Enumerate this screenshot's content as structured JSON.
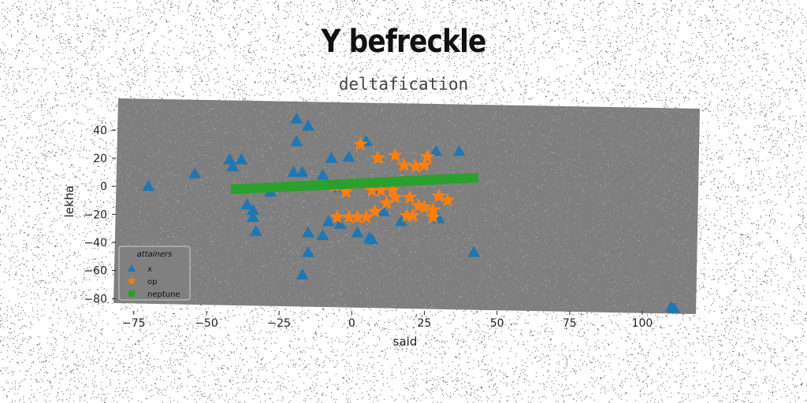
{
  "chart_data": {
    "type": "scatter",
    "title": "Y befreckle",
    "subtitle": "deltafication",
    "xlabel": "said",
    "ylabel": "lekha",
    "xlim": [
      -82,
      119
    ],
    "ylim": [
      -86,
      57
    ],
    "xticks": [
      -75,
      -50,
      -25,
      0,
      25,
      50,
      75,
      100
    ],
    "yticks": [
      40,
      20,
      0,
      -20,
      -40,
      -60,
      -80
    ],
    "grid": false,
    "legend": {
      "title": "attainers",
      "placement": "lower-left"
    },
    "series": [
      {
        "name": "x",
        "marker": "triangle",
        "color": "#1f77b4",
        "points": [
          [
            -70,
            0
          ],
          [
            -54,
            9
          ],
          [
            -42,
            19
          ],
          [
            -38,
            19
          ],
          [
            -41,
            14
          ],
          [
            -19,
            48
          ],
          [
            -15,
            43
          ],
          [
            -19,
            32
          ],
          [
            -20,
            10
          ],
          [
            -17,
            10
          ],
          [
            -10,
            8
          ],
          [
            -7,
            20
          ],
          [
            -1,
            21
          ],
          [
            5,
            32
          ],
          [
            29,
            25
          ],
          [
            37,
            25
          ],
          [
            -36,
            -13
          ],
          [
            -34,
            -17
          ],
          [
            -34,
            -22
          ],
          [
            -33,
            -32
          ],
          [
            -15,
            -33
          ],
          [
            -10,
            -35
          ],
          [
            -15,
            -47
          ],
          [
            -17,
            -63
          ],
          [
            -4,
            -27
          ],
          [
            2,
            -33
          ],
          [
            6,
            -37
          ],
          [
            7,
            -38
          ],
          [
            11,
            -18
          ],
          [
            17,
            -25
          ],
          [
            30,
            -23
          ],
          [
            -8,
            -25
          ],
          [
            42,
            -47
          ],
          [
            110,
            -86
          ],
          [
            111,
            -87
          ],
          [
            -28,
            -4
          ],
          [
            -4,
            -1
          ],
          [
            8,
            -2
          ]
        ]
      },
      {
        "name": "op",
        "marker": "star",
        "color": "#ff7f0e",
        "points": [
          [
            3,
            30
          ],
          [
            9,
            20
          ],
          [
            15,
            22
          ],
          [
            18,
            15
          ],
          [
            22,
            14
          ],
          [
            25,
            15
          ],
          [
            26,
            21
          ],
          [
            7,
            -3
          ],
          [
            10,
            -3
          ],
          [
            14,
            -3
          ],
          [
            15,
            -8
          ],
          [
            12,
            -12
          ],
          [
            8,
            -18
          ],
          [
            5,
            -22
          ],
          [
            2,
            -22
          ],
          [
            -5,
            -22
          ],
          [
            -1,
            -22
          ],
          [
            -2,
            -4
          ],
          [
            20,
            -8
          ],
          [
            23,
            -14
          ],
          [
            25,
            -15
          ],
          [
            19,
            -21
          ],
          [
            21,
            -21
          ],
          [
            28,
            -17
          ],
          [
            28,
            -22
          ],
          [
            30,
            -7
          ],
          [
            33,
            -10
          ],
          [
            -6,
            0
          ]
        ]
      },
      {
        "name": "neptune",
        "marker": "square",
        "color": "#2ca02c",
        "line": {
          "x_from": -40,
          "x_to": 42,
          "y_from": -2,
          "y_to": 6,
          "count": 80
        }
      }
    ]
  }
}
